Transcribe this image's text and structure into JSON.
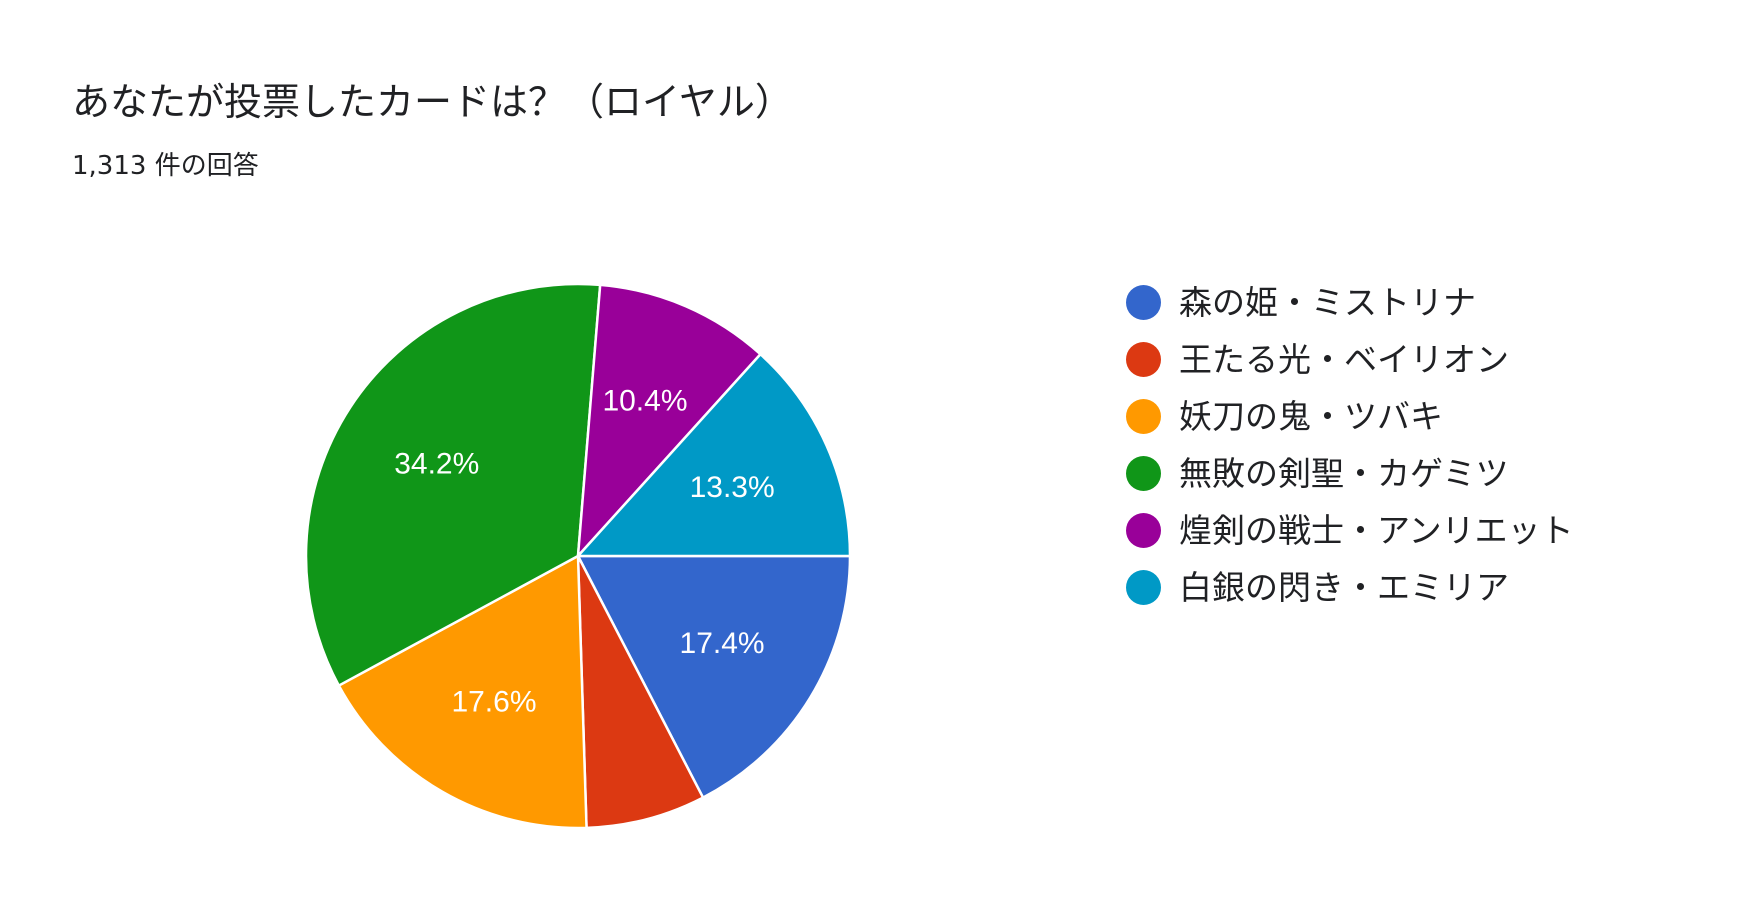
{
  "title": "あなたが投票したカードは？（ロイヤル）",
  "subtitle": "1,313 件の回答",
  "chart_data": {
    "type": "pie",
    "title": "あなたが投票したカードは？（ロイヤル）",
    "subtitle": "1,313 件の回答",
    "legend_position": "right",
    "start_angle": "3 o'clock, clockwise",
    "slices": [
      {
        "label": "森の姫・ミストリナ",
        "percent": 17.4,
        "display": "17.4%",
        "color": "#3366cc"
      },
      {
        "label": "王たる光・ベイリオン",
        "percent": 7.1,
        "display": "",
        "color": "#dc3912"
      },
      {
        "label": "妖刀の鬼・ツバキ",
        "percent": 17.6,
        "display": "17.6%",
        "color": "#ff9900"
      },
      {
        "label": "無敗の剣聖・カゲミツ",
        "percent": 34.2,
        "display": "34.2%",
        "color": "#109618"
      },
      {
        "label": "煌剣の戦士・アンリエット",
        "percent": 10.4,
        "display": "10.4%",
        "color": "#990099"
      },
      {
        "label": "白銀の閃き・エミリア",
        "percent": 13.3,
        "display": "13.3%",
        "color": "#0099c6"
      }
    ]
  }
}
